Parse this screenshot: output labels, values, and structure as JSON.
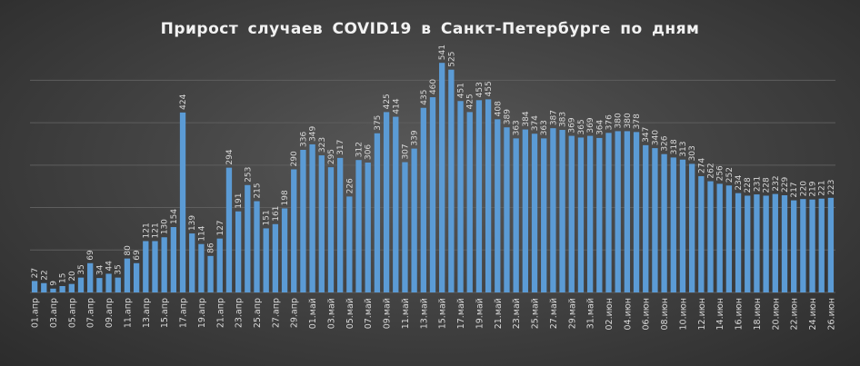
{
  "title": "Прирост  случаев  COVID19  в  Санкт-Петербурге  по  дням",
  "colors": {
    "bar": "#5b9bd5",
    "grid": "#5e5e5e",
    "text": "#d9d9d9"
  },
  "chart_data": {
    "type": "bar",
    "title": "Прирост  случаев  COVID19  в  Санкт-Петербурге  по  дням",
    "xlabel": "",
    "ylabel": "",
    "ylim": [
      0,
      550
    ],
    "grid": true,
    "legend": "none",
    "categories": [
      "01.апр",
      "02.апр",
      "03.апр",
      "04.апр",
      "05.апр",
      "06.апр",
      "07.апр",
      "08.апр",
      "09.апр",
      "10.апр",
      "11.апр",
      "12.апр",
      "13.апр",
      "14.апр",
      "15.апр",
      "16.апр",
      "17.апр",
      "18.апр",
      "19.апр",
      "20.апр",
      "21.апр",
      "22.апр",
      "23.апр",
      "24.апр",
      "25.апр",
      "26.апр",
      "27.апр",
      "28.апр",
      "29.апр",
      "30.апр",
      "01.май",
      "02.май",
      "03.май",
      "04.май",
      "05.май",
      "06.май",
      "07.май",
      "08.май",
      "09.май",
      "10.май",
      "11.май",
      "12.май",
      "13.май",
      "14.май",
      "15.май",
      "16.май",
      "17.май",
      "18.май",
      "19.май",
      "20.май",
      "21.май",
      "22.май",
      "23.май",
      "24.май",
      "25.май",
      "26.май",
      "27.май",
      "28.май",
      "29.май",
      "30.май",
      "31.май",
      "01.июн",
      "02.июн",
      "03.июн",
      "04.июн",
      "05.июн",
      "06.июн",
      "07.июн",
      "08.июн",
      "09.июн",
      "10.июн",
      "11.июн",
      "12.июн",
      "13.июн",
      "14.июн",
      "15.июн",
      "16.июн",
      "17.июн",
      "18.июн",
      "19.июн",
      "20.июн",
      "21.июн",
      "22.июн",
      "23.июн",
      "24.июн",
      "25.июн",
      "26.июн"
    ],
    "tick_labels": [
      "01.апр",
      "03.апр",
      "05.апр",
      "07.апр",
      "09.апр",
      "11.апр",
      "13.апр",
      "15.апр",
      "17.апр",
      "19.апр",
      "21.апр",
      "23.апр",
      "25.апр",
      "27.апр",
      "29.апр",
      "01.май",
      "03.май",
      "05.май",
      "07.май",
      "09.май",
      "11.май",
      "13.май",
      "15.май",
      "17.май",
      "19.май",
      "21.май",
      "23.май",
      "25.май",
      "27.май",
      "29.май",
      "31.май",
      "02.июн",
      "04.июн",
      "06.июн",
      "08.июн",
      "10.июн",
      "12.июн",
      "14.июн",
      "16.июн",
      "18.июн",
      "20.июн",
      "22.июн",
      "24.июн",
      "26.июн"
    ],
    "values": [
      27,
      22,
      9,
      15,
      20,
      35,
      69,
      34,
      44,
      35,
      80,
      69,
      121,
      121,
      130,
      154,
      424,
      139,
      114,
      86,
      127,
      294,
      191,
      253,
      215,
      151,
      161,
      198,
      290,
      336,
      349,
      323,
      295,
      317,
      226,
      312,
      306,
      375,
      425,
      414,
      307,
      339,
      435,
      460,
      541,
      525,
      451,
      425,
      453,
      455,
      408,
      389,
      363,
      384,
      374,
      363,
      387,
      383,
      369,
      365,
      369,
      364,
      376,
      380,
      380,
      378,
      347,
      340,
      326,
      318,
      313,
      303,
      274,
      262,
      256,
      252,
      234,
      228,
      231,
      228,
      232,
      229,
      217,
      220,
      219,
      221,
      223
    ]
  }
}
